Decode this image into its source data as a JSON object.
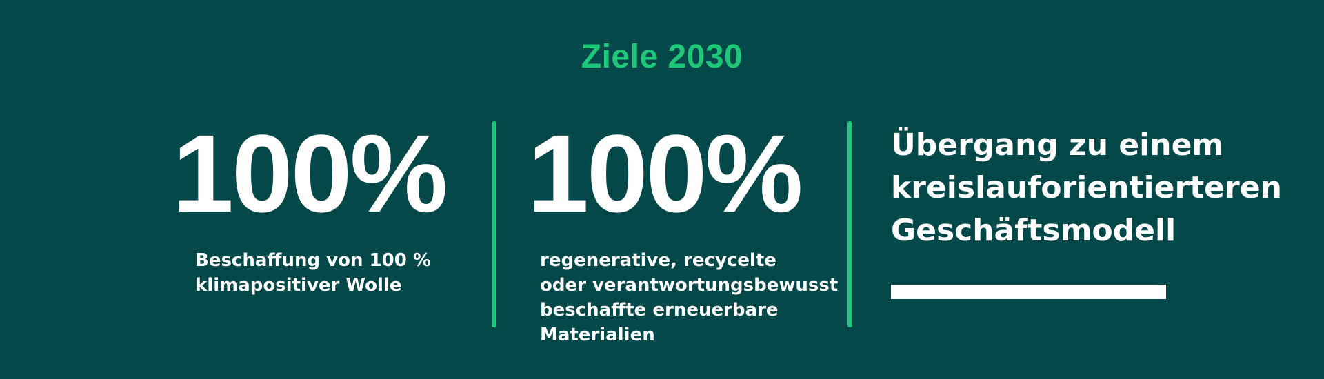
{
  "theme": {
    "background_color": "#05484A",
    "accent_green": "#1EC878",
    "text_color": "#FFFFFF"
  },
  "title": "Ziele 2030",
  "goals": [
    {
      "stat": "100%",
      "description": "Beschaffung von 100 %\nklimapositiver Wolle"
    },
    {
      "stat": "100%",
      "description": "regenerative, recycelte\noder verantwortungsbewusst\nbeschaffte erneuerbare\nMaterialien"
    },
    {
      "heading": "Übergang zu einem\nkreislauforientierteren\nGeschäftsmodell"
    }
  ]
}
